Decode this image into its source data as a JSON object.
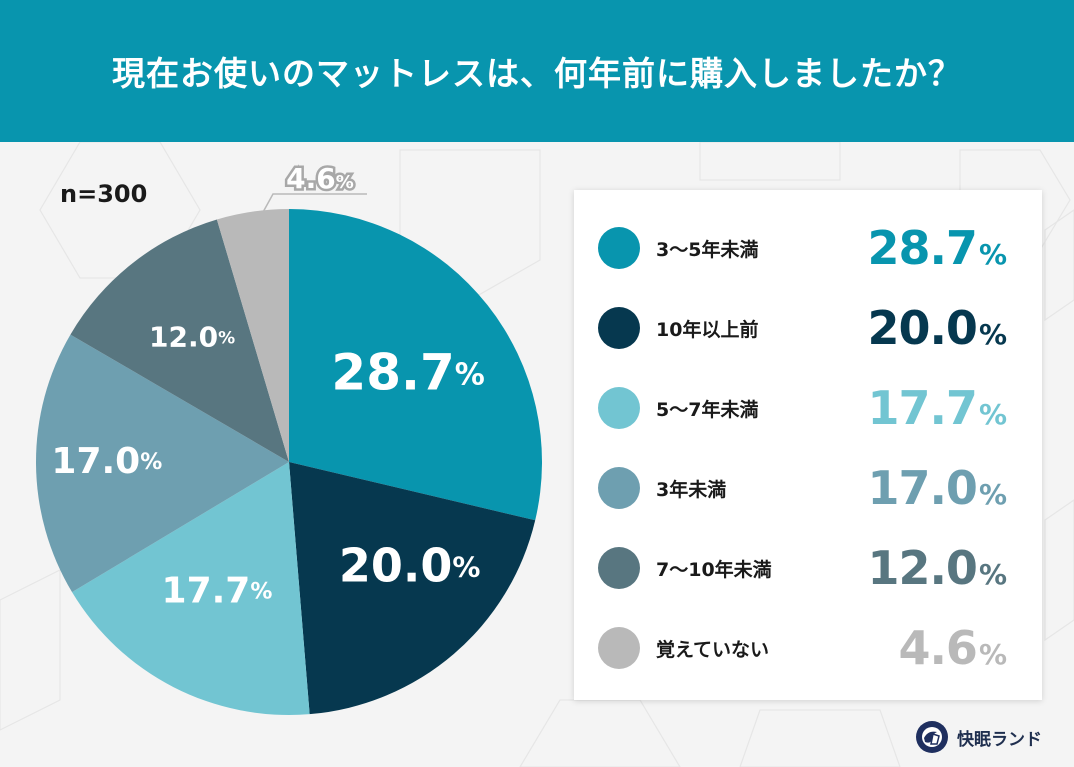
{
  "header": {
    "title": "現在お使いのマットレスは、何年前に購入しましたか？"
  },
  "sample": {
    "label": "n=300"
  },
  "legend": [
    {
      "label": "3〜5年未満",
      "value": "28.7",
      "pct": "%",
      "color": "#0895ae"
    },
    {
      "label": "10年以上前",
      "value": "20.0",
      "pct": "%",
      "color": "#06384f"
    },
    {
      "label": "5〜7年未満",
      "value": "17.7",
      "pct": "%",
      "color": "#72c5d2"
    },
    {
      "label": "3年未満",
      "value": "17.0",
      "pct": "%",
      "color": "#6e9fb0"
    },
    {
      "label": "7〜10年未満",
      "value": "12.0",
      "pct": "%",
      "color": "#587680"
    },
    {
      "label": "覚えていない",
      "value": "4.6",
      "pct": "%",
      "color": "#b9b9b9"
    }
  ],
  "logo": {
    "name": "快眠ランド"
  },
  "chart_data": {
    "type": "pie",
    "title": "現在お使いのマットレスは、何年前に購入しましたか？",
    "subtitle": "n=300",
    "categories": [
      "3〜5年未満",
      "10年以上前",
      "5〜7年未満",
      "3年未満",
      "7〜10年未満",
      "覚えていない"
    ],
    "values": [
      28.7,
      20.0,
      17.7,
      17.0,
      12.0,
      4.6
    ],
    "colors": [
      "#0895ae",
      "#06384f",
      "#72c5d2",
      "#6e9fb0",
      "#587680",
      "#b9b9b9"
    ],
    "start_angle": "12 o'clock, clockwise",
    "legend_position": "right",
    "unit": "%"
  }
}
